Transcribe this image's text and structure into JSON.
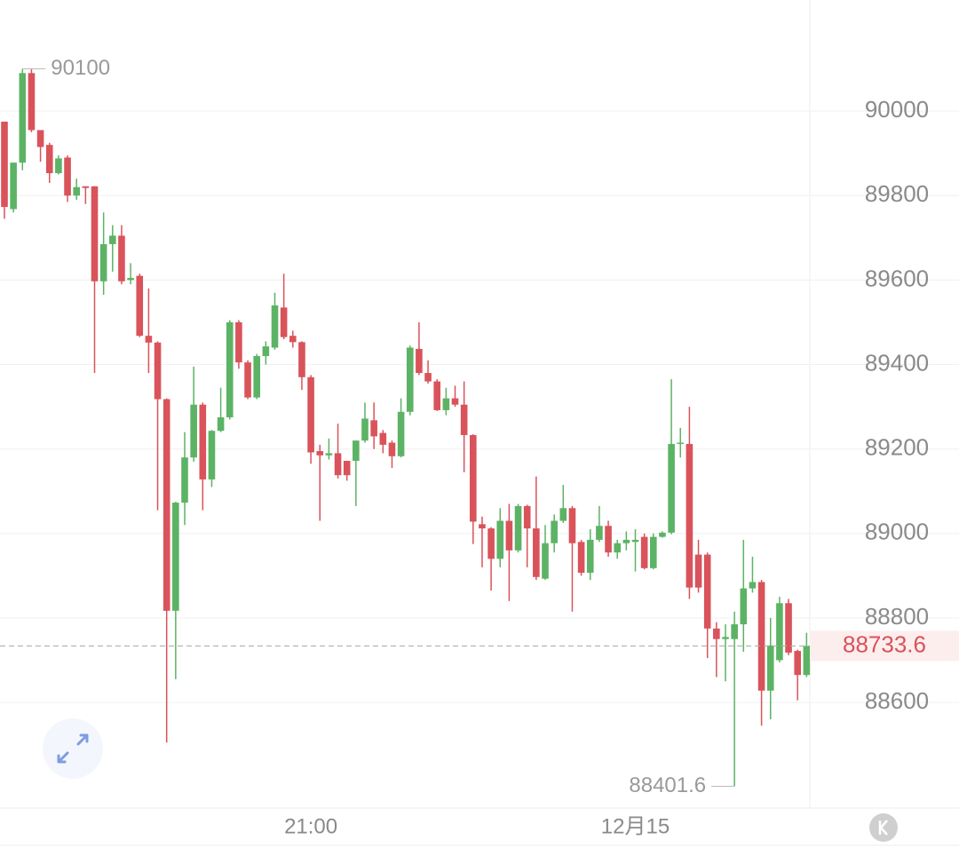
{
  "chart_data": {
    "type": "candlestick",
    "categories": [
      null,
      null,
      null,
      null,
      null,
      null,
      null,
      null,
      null,
      null,
      null,
      null,
      null,
      null,
      null,
      null,
      null,
      null,
      null,
      null,
      null,
      null,
      null,
      null,
      null,
      null,
      null,
      null,
      null,
      null,
      null,
      null,
      null,
      null,
      "21:00",
      null,
      null,
      null,
      null,
      null,
      null,
      null,
      null,
      null,
      null,
      null,
      null,
      null,
      null,
      null,
      null,
      null,
      null,
      null,
      null,
      null,
      null,
      null,
      null,
      null,
      null,
      null,
      null,
      null,
      null,
      null,
      null,
      null,
      null,
      null,
      "12月15",
      null,
      null,
      null,
      null,
      null,
      null,
      null,
      null,
      null,
      null,
      null,
      null,
      null,
      null,
      null,
      null,
      null,
      null,
      null
    ],
    "open": [
      89975,
      89768,
      89878,
      90090,
      89955,
      89920,
      89853,
      89890,
      89800,
      89822,
      89822,
      89597,
      89685,
      89705,
      89600,
      89610,
      89468,
      89452,
      89318,
      88817,
      89073,
      89180,
      89305,
      89128,
      89243,
      89275,
      89500,
      89405,
      89322,
      89420,
      89440,
      89535,
      89468,
      89453,
      89370,
      89195,
      89185,
      89190,
      89172,
      89172,
      89220,
      89268,
      89238,
      89215,
      89183,
      89288,
      89437,
      89380,
      89360,
      89292,
      89320,
      89305,
      89233,
      89022,
      89012,
      88940,
      89030,
      88960,
      89065,
      89012,
      88893,
      88977,
      89030,
      89060,
      88980,
      88907,
      88985,
      89018,
      88955,
      88977,
      88980,
      88992,
      88918,
      88992,
      89002,
      89212,
      89212,
      88950,
      88950,
      88775,
      88750,
      88750,
      88785,
      88870,
      88885,
      88628,
      88700,
      88835,
      88722,
      88665
    ],
    "high": [
      89975,
      89878,
      90100,
      90099.9,
      89955,
      89925,
      89895,
      89895,
      89840,
      89822,
      89822,
      89760,
      89730,
      89730,
      89640,
      89615,
      89580,
      89455,
      89320,
      89075,
      89240,
      89395,
      89310,
      89245,
      89345,
      89505,
      89505,
      89410,
      89425,
      89455,
      89570,
      89615,
      89480,
      89455,
      89375,
      89210,
      89225,
      89260,
      89172,
      89220,
      89310,
      89310,
      89245,
      89220,
      89320,
      89445,
      89500,
      89410,
      89365,
      89345,
      89350,
      89360,
      89235,
      89040,
      89015,
      89060,
      89070,
      89070,
      89068,
      89135,
      89020,
      89045,
      89115,
      89065,
      88985,
      89010,
      89065,
      89030,
      88985,
      89005,
      89010,
      89000,
      89000,
      89005,
      89365,
      89250,
      89300,
      88985,
      88955,
      88790,
      88785,
      88815,
      88985,
      88945,
      88890,
      88800,
      88850,
      88845,
      88725,
      88765
    ],
    "low": [
      89745,
      89760,
      89860,
      89950,
      89880,
      89830,
      89850,
      89785,
      89790,
      89780,
      89380,
      89565,
      89620,
      89590,
      89590,
      89465,
      89380,
      89055,
      88505,
      88655,
      89020,
      89170,
      89055,
      89110,
      89240,
      89270,
      89390,
      89318,
      89318,
      89400,
      89435,
      89460,
      89440,
      89340,
      89165,
      89030,
      89175,
      89130,
      89125,
      89065,
      89215,
      89200,
      89190,
      89155,
      89180,
      89280,
      89375,
      89355,
      89290,
      89280,
      89300,
      89145,
      88975,
      88920,
      88865,
      88920,
      88840,
      88955,
      88920,
      88890,
      88890,
      88955,
      89025,
      88815,
      88900,
      88890,
      88980,
      88945,
      88940,
      88960,
      88910,
      88915,
      88915,
      88990,
      88998,
      89180,
      88845,
      88860,
      88705,
      88660,
      88650,
      88401.6,
      88720,
      88860,
      88545,
      88560,
      88695,
      88712,
      88605,
      88660
    ],
    "close": [
      89773,
      89878,
      90090,
      89955,
      89915,
      89853,
      89888,
      89800,
      89820,
      89818,
      89597,
      89685,
      89705,
      89597,
      89605,
      89468,
      89452,
      89318,
      88817,
      89073,
      89180,
      89305,
      89128,
      89243,
      89275,
      89500,
      89405,
      89322,
      89420,
      89443,
      89540,
      89465,
      89453,
      89370,
      89192,
      89185,
      89190,
      89138,
      89138,
      89220,
      89272,
      89230,
      89210,
      89183,
      89288,
      89440,
      89380,
      89360,
      89292,
      89320,
      89305,
      89233,
      89028,
      89012,
      88940,
      89030,
      88960,
      89065,
      89012,
      88897,
      88977,
      89030,
      89060,
      88977,
      88907,
      88985,
      89018,
      88955,
      88977,
      88985,
      88985,
      88918,
      88992,
      89002,
      89212,
      89215,
      88872,
      88872,
      88775,
      88750,
      88755,
      88785,
      88870,
      88885,
      88628,
      88735,
      88835,
      88718,
      88665,
      88733.6
    ],
    "up_color": "#5cb365",
    "down_color": "#d9535b",
    "ylim": [
      88350,
      90263
    ],
    "yticks": [
      88600,
      88800,
      89000,
      89200,
      89400,
      89600,
      89800,
      90000
    ],
    "grid": true
  }
}
